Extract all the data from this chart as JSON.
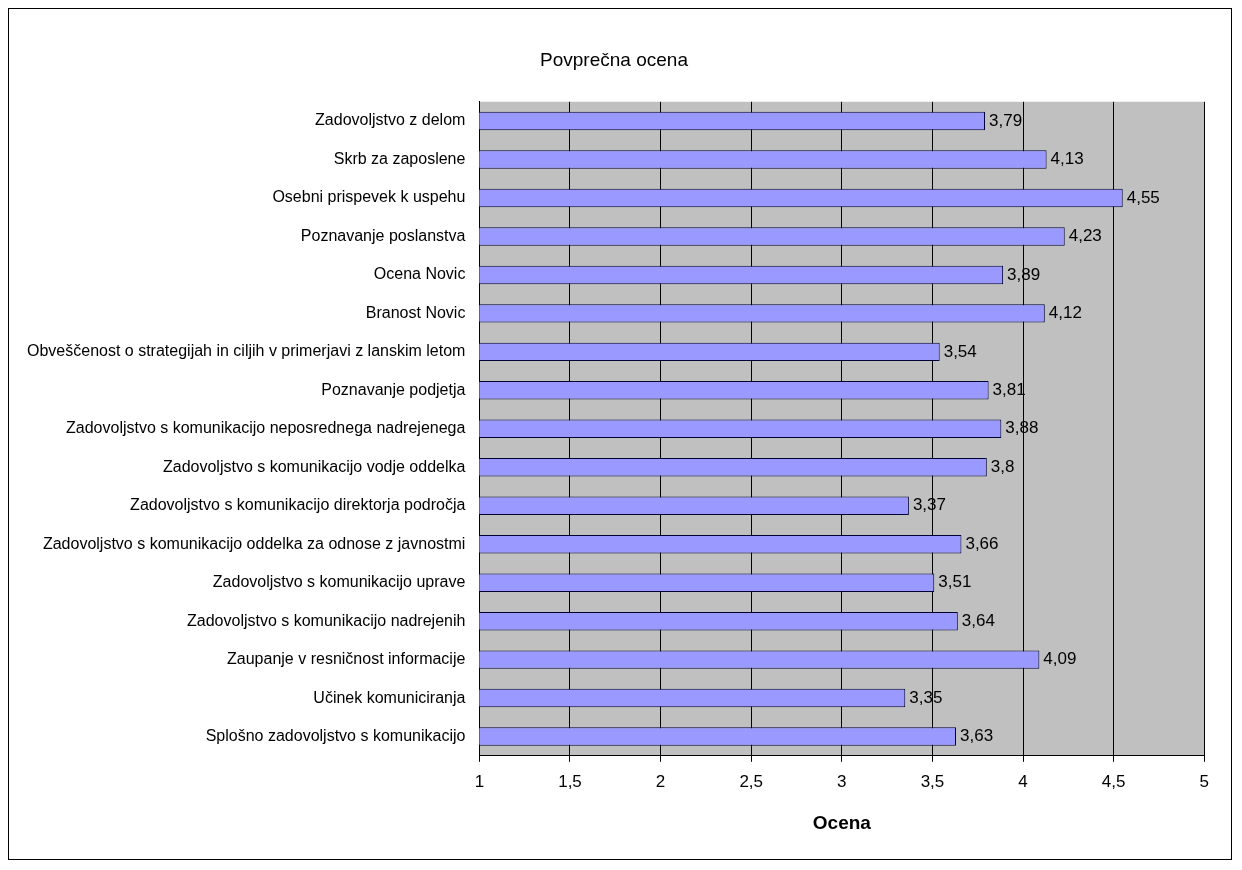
{
  "chart_data": {
    "type": "bar",
    "orientation": "horizontal",
    "title": "Povprečna ocena",
    "xlabel": "Ocena",
    "categories": [
      "Zadovoljstvo z delom",
      "Skrb za zaposlene",
      "Osebni prispevek k uspehu",
      "Poznavanje poslanstva",
      "Ocena Novic",
      "Branost Novic",
      "Obveščenost o strategijah in ciljih v primerjavi z lanskim letom",
      "Poznavanje podjetja",
      "Zadovoljstvo s komunikacijo neposrednega nadrejenega",
      "Zadovoljstvo s komunikacijo vodje oddelka",
      "Zadovoljstvo s komunikacijo direktorja področja",
      "Zadovoljstvo s komunikacijo oddelka za odnose z javnostmi",
      "Zadovoljstvo s komunikacijo uprave",
      "Zadovoljstvo s komunikacijo nadrejenih",
      "Zaupanje v resničnost informacije",
      "Učinek komuniciranja",
      "Splošno zadovoljstvo s komunikacijo"
    ],
    "values": [
      3.79,
      4.13,
      4.55,
      4.23,
      3.89,
      4.12,
      3.54,
      3.81,
      3.88,
      3.8,
      3.37,
      3.66,
      3.51,
      3.64,
      4.09,
      3.35,
      3.63
    ],
    "value_labels": [
      "3,79",
      "4,13",
      "4,55",
      "4,23",
      "3,89",
      "4,12",
      "3,54",
      "3,81",
      "3,88",
      "3,8",
      "3,37",
      "3,66",
      "3,51",
      "3,64",
      "4,09",
      "3,35",
      "3,63"
    ],
    "color": "#9999ff",
    "xlim": [
      1,
      5
    ],
    "xticks": [
      1,
      {
        "value": 1.5,
        "label": "1,5"
      },
      2,
      {
        "value": 2.5,
        "label": "2,5"
      },
      3,
      {
        "value": 3.5,
        "label": "3,5"
      },
      4,
      {
        "value": 4.5,
        "label": "4,5"
      },
      5
    ],
    "grid": "x",
    "legend": false
  }
}
